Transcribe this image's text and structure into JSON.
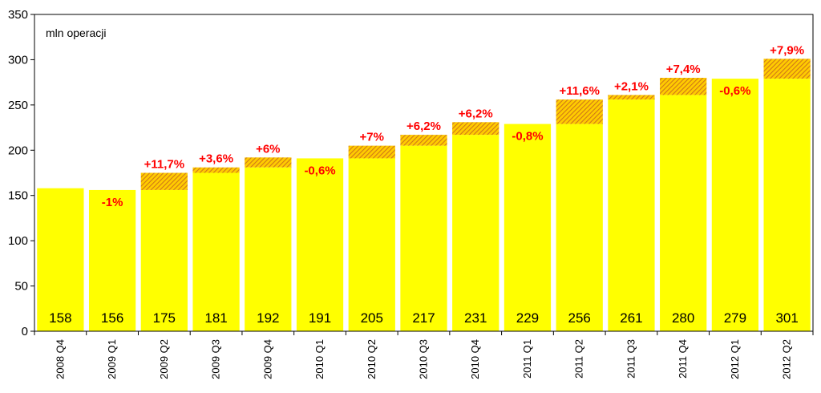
{
  "chart_data": {
    "type": "bar",
    "unit_label": "mln operacji",
    "ylim": [
      0,
      350
    ],
    "yticks": [
      0,
      50,
      100,
      150,
      200,
      250,
      300,
      350
    ],
    "grid": false,
    "categories": [
      "2008 Q4",
      "2009 Q1",
      "2009 Q2",
      "2009 Q3",
      "2009 Q4",
      "2010 Q1",
      "2010 Q2",
      "2010 Q3",
      "2010 Q4",
      "2011 Q1",
      "2011 Q2",
      "2011 Q3",
      "2011 Q4",
      "2012 Q1",
      "2012 Q2"
    ],
    "values": [
      158,
      156,
      175,
      181,
      192,
      191,
      205,
      217,
      231,
      229,
      256,
      261,
      280,
      279,
      301
    ],
    "value_labels": [
      "158",
      "156",
      "175",
      "181",
      "192",
      "191",
      "205",
      "217",
      "231",
      "229",
      "256",
      "261",
      "280",
      "279",
      "301"
    ],
    "changes": [
      "",
      "-1%",
      "+11,7%",
      "+3,6%",
      "+6%",
      "-0,6%",
      "+7%",
      "+6,2%",
      "+6,2%",
      "-0,8%",
      "+11,6%",
      "+2,1%",
      "+7,4%",
      "-0,6%",
      "+7,9%"
    ],
    "colors": {
      "bar": "#ffff00",
      "hatch": "#d07818",
      "hatch_bg": "#ffcc00",
      "change_text": "#ff0000"
    }
  }
}
